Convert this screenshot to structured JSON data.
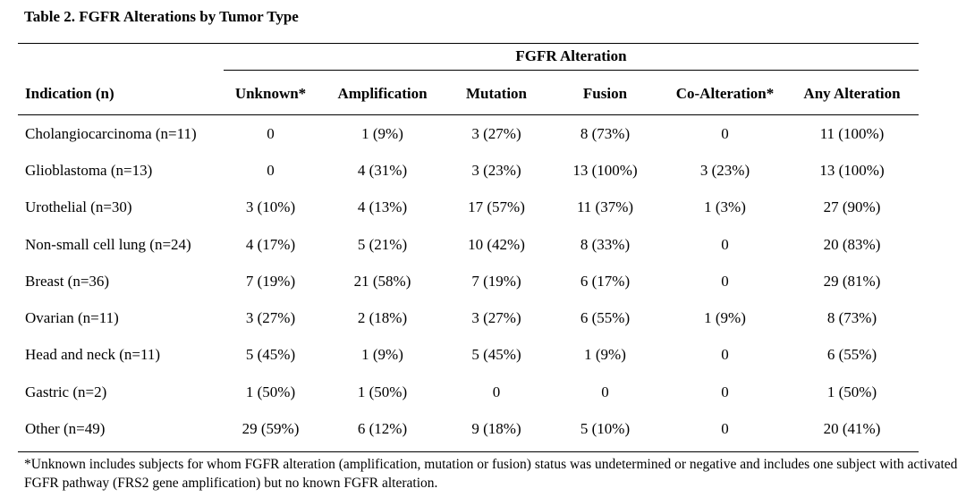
{
  "title": "Table 2. FGFR Alterations by Tumor Type",
  "group_header": "FGFR Alteration",
  "columns": [
    "Indication (n)",
    "Unknown*",
    "Amplification",
    "Mutation",
    "Fusion",
    "Co-Alteration*",
    "Any Alteration"
  ],
  "rows": [
    [
      "Cholangiocarcinoma (n=11)",
      "0",
      "1 (9%)",
      "3 (27%)",
      "8 (73%)",
      "0",
      "11 (100%)"
    ],
    [
      "Glioblastoma (n=13)",
      "0",
      "4 (31%)",
      "3 (23%)",
      "13 (100%)",
      "3 (23%)",
      "13 (100%)"
    ],
    [
      "Urothelial (n=30)",
      "3 (10%)",
      "4 (13%)",
      "17 (57%)",
      "11 (37%)",
      "1 (3%)",
      "27 (90%)"
    ],
    [
      "Non-small cell lung (n=24)",
      "4 (17%)",
      "5 (21%)",
      "10 (42%)",
      "8 (33%)",
      "0",
      "20 (83%)"
    ],
    [
      "Breast (n=36)",
      "7 (19%)",
      "21 (58%)",
      "7 (19%)",
      "6 (17%)",
      "0",
      "29 (81%)"
    ],
    [
      "Ovarian (n=11)",
      "3 (27%)",
      "2 (18%)",
      "3 (27%)",
      "6 (55%)",
      "1 (9%)",
      "8 (73%)"
    ],
    [
      "Head and neck (n=11)",
      "5 (45%)",
      "1 (9%)",
      "5 (45%)",
      "1 (9%)",
      "0",
      "6 (55%)"
    ],
    [
      "Gastric (n=2)",
      "1 (50%)",
      "1 (50%)",
      "0",
      "0",
      "0",
      "1 (50%)"
    ],
    [
      "Other (n=49)",
      "29 (59%)",
      "6 (12%)",
      "9 (18%)",
      "5 (10%)",
      "0",
      "20 (41%)"
    ]
  ],
  "footnote": "*Unknown includes subjects for whom FGFR alteration (amplification, mutation or fusion) status was undetermined or negative and includes one subject with activated FGFR pathway (FRS2 gene amplification) but no known FGFR alteration."
}
